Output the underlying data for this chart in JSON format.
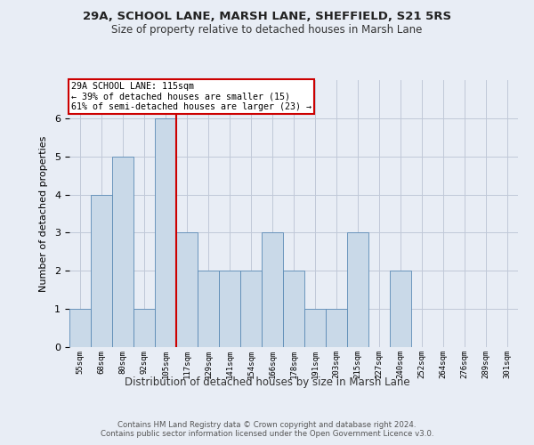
{
  "title1": "29A, SCHOOL LANE, MARSH LANE, SHEFFIELD, S21 5RS",
  "title2": "Size of property relative to detached houses in Marsh Lane",
  "xlabel": "Distribution of detached houses by size in Marsh Lane",
  "ylabel": "Number of detached properties",
  "categories": [
    "55sqm",
    "68sqm",
    "80sqm",
    "92sqm",
    "105sqm",
    "117sqm",
    "129sqm",
    "141sqm",
    "154sqm",
    "166sqm",
    "178sqm",
    "191sqm",
    "203sqm",
    "215sqm",
    "227sqm",
    "240sqm",
    "252sqm",
    "264sqm",
    "276sqm",
    "289sqm",
    "301sqm"
  ],
  "values": [
    1,
    4,
    5,
    1,
    6,
    3,
    2,
    2,
    2,
    3,
    2,
    1,
    1,
    3,
    0,
    2,
    0,
    0,
    0,
    0,
    0
  ],
  "bar_color": "#c9d9e8",
  "bar_edge_color": "#5a8ab5",
  "vline_x_index": 4.5,
  "vline_color": "#cc0000",
  "annotation_line1": "29A SCHOOL LANE: 115sqm",
  "annotation_line2": "← 39% of detached houses are smaller (15)",
  "annotation_line3": "61% of semi-detached houses are larger (23) →",
  "annotation_box_color": "#cc0000",
  "ylim": [
    0,
    7
  ],
  "yticks": [
    0,
    1,
    2,
    3,
    4,
    5,
    6
  ],
  "footer1": "Contains HM Land Registry data © Crown copyright and database right 2024.",
  "footer2": "Contains public sector information licensed under the Open Government Licence v3.0.",
  "bg_color": "#e8edf5",
  "plot_bg_color": "#e8edf5",
  "grid_color": "#c0c8d8"
}
